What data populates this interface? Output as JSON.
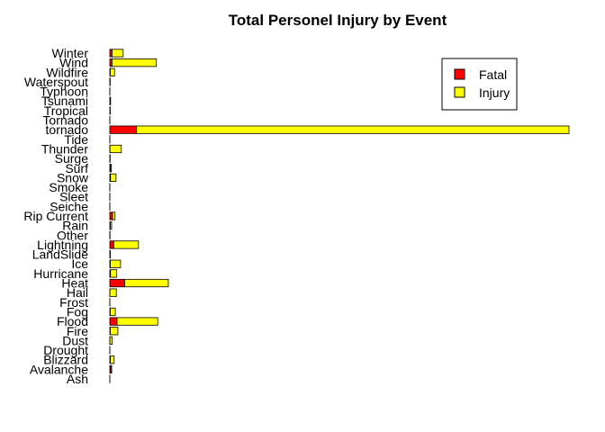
{
  "chart_data": {
    "type": "bar",
    "orientation": "horizontal",
    "stacked": true,
    "title": "Total Personel Injury by Event",
    "xlabel": "",
    "ylabel": "",
    "categories": [
      "Ash",
      "Avalanche",
      "Blizzard",
      "Drought",
      "Dust",
      "Fire",
      "Flood",
      "Fog",
      "Frost",
      "Hail",
      "Heat",
      "Hurricane",
      "Ice",
      "LandSlide",
      "Lightning",
      "Other",
      "Rain",
      "Rip Current",
      "Seiche",
      "Sleet",
      "Smoke",
      "Snow",
      "Surf",
      "Surge",
      "Thunder",
      "Tide",
      "tornado",
      "Tornado",
      "Tropical",
      "Tsunami",
      "Typhoon",
      "Waterspout",
      "Wildfire",
      "Wind",
      "Winter"
    ],
    "series": [
      {
        "name": "Fatal",
        "color": "#ff0000",
        "values": [
          0,
          224,
          101,
          0,
          24,
          90,
          1524,
          80,
          2,
          15,
          3138,
          135,
          101,
          44,
          817,
          2,
          100,
          570,
          0,
          0,
          0,
          140,
          150,
          25,
          30,
          13,
          5633,
          0,
          66,
          33,
          0,
          6,
          90,
          458,
          470
        ]
      },
      {
        "name": "Injury",
        "color": "#ffff00",
        "values": [
          0,
          170,
          805,
          0,
          483,
          1608,
          8602,
          1077,
          3,
          1361,
          9224,
          1328,
          2164,
          55,
          5232,
          43,
          280,
          529,
          0,
          0,
          0,
          1164,
          180,
          43,
          2400,
          0,
          91407,
          0,
          0,
          129,
          5,
          72,
          911,
          9350,
          2350
        ]
      }
    ],
    "xlim": [
      0,
      97040
    ],
    "axes_shown": false,
    "grid": false,
    "legend": {
      "placement": "top-right",
      "entries": [
        "Fatal",
        "Injury"
      ]
    }
  }
}
